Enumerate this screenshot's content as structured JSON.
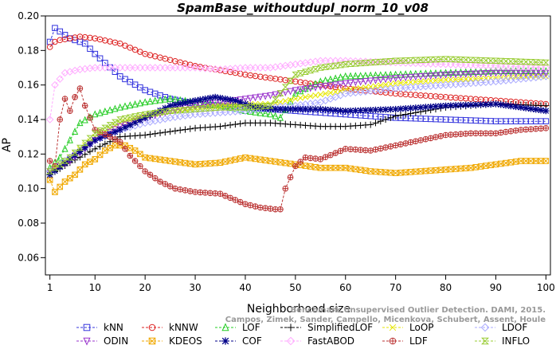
{
  "chart_data": {
    "type": "line",
    "title": "SpamBase_withoutdupl_norm_10_v08",
    "xlabel": "Neighborhood size",
    "ylabel": "AP",
    "xlim": [
      1,
      100
    ],
    "ylim": [
      0.05,
      0.2
    ],
    "xticks": [
      1,
      10,
      20,
      30,
      40,
      50,
      60,
      70,
      80,
      90,
      100
    ],
    "yticks": [
      0.06,
      0.08,
      0.1,
      0.12,
      0.14,
      0.16,
      0.18,
      0.2
    ],
    "ytick_labels": [
      "0.06",
      "0.08",
      "0.10",
      "0.12",
      "0.14",
      "0.16",
      "0.18",
      "0.20"
    ],
    "grid": false,
    "legend_position": "bottom",
    "watermark": [
      "Benchmark Unsupervised Outlier Detection. DAMI, 2015.",
      "Campos, Zimek, Sander, Campello, Micenkova, Schubert, Assent, Houle"
    ],
    "series": [
      {
        "name": "kNN",
        "color": "#3333dd",
        "marker": "square",
        "x": [
          1,
          2,
          3,
          5,
          8,
          10,
          15,
          20,
          25,
          30,
          40,
          50,
          60,
          70,
          80,
          90,
          100
        ],
        "y": [
          0.185,
          0.193,
          0.191,
          0.187,
          0.184,
          0.178,
          0.165,
          0.157,
          0.152,
          0.149,
          0.147,
          0.145,
          0.143,
          0.141,
          0.14,
          0.139,
          0.139
        ]
      },
      {
        "name": "kNNW",
        "color": "#dd2222",
        "marker": "circle",
        "x": [
          1,
          2,
          3,
          5,
          7,
          10,
          15,
          20,
          30,
          40,
          50,
          60,
          70,
          80,
          90,
          100
        ],
        "y": [
          0.182,
          0.185,
          0.186,
          0.187,
          0.188,
          0.187,
          0.184,
          0.178,
          0.171,
          0.166,
          0.162,
          0.158,
          0.155,
          0.153,
          0.151,
          0.149
        ]
      },
      {
        "name": "LOF",
        "color": "#22cc22",
        "marker": "triangle-up",
        "x": [
          1,
          3,
          5,
          7,
          10,
          15,
          20,
          25,
          30,
          35,
          40,
          45,
          47,
          50,
          55,
          60,
          70,
          80,
          90,
          100
        ],
        "y": [
          0.112,
          0.118,
          0.128,
          0.138,
          0.143,
          0.147,
          0.15,
          0.152,
          0.15,
          0.148,
          0.145,
          0.143,
          0.141,
          0.155,
          0.162,
          0.165,
          0.166,
          0.167,
          0.168,
          0.168
        ]
      },
      {
        "name": "SimplifiedLOF",
        "color": "#000000",
        "marker": "plus",
        "x": [
          1,
          5,
          10,
          15,
          20,
          25,
          30,
          35,
          40,
          45,
          50,
          55,
          60,
          65,
          70,
          80,
          90,
          100
        ],
        "y": [
          0.108,
          0.115,
          0.123,
          0.13,
          0.131,
          0.133,
          0.135,
          0.136,
          0.138,
          0.138,
          0.137,
          0.136,
          0.136,
          0.137,
          0.142,
          0.147,
          0.149,
          0.148
        ]
      },
      {
        "name": "LoOP",
        "color": "#e6e600",
        "marker": "cross",
        "x": [
          1,
          5,
          10,
          15,
          20,
          25,
          30,
          35,
          40,
          45,
          50,
          60,
          70,
          80,
          90,
          100
        ],
        "y": [
          0.11,
          0.118,
          0.13,
          0.138,
          0.142,
          0.145,
          0.147,
          0.148,
          0.149,
          0.149,
          0.152,
          0.157,
          0.161,
          0.163,
          0.164,
          0.165
        ]
      },
      {
        "name": "LDOF",
        "color": "#aaaaff",
        "marker": "diamond",
        "x": [
          1,
          5,
          10,
          15,
          20,
          25,
          30,
          35,
          40,
          45,
          50,
          55,
          60,
          70,
          80,
          90,
          100
        ],
        "y": [
          0.11,
          0.118,
          0.128,
          0.134,
          0.138,
          0.141,
          0.143,
          0.144,
          0.145,
          0.147,
          0.148,
          0.15,
          0.155,
          0.158,
          0.16,
          0.162,
          0.165
        ]
      },
      {
        "name": "ODIN",
        "color": "#9933cc",
        "marker": "triangle-down",
        "x": [
          1,
          5,
          10,
          15,
          20,
          25,
          30,
          35,
          40,
          45,
          50,
          60,
          70,
          80,
          90,
          100
        ],
        "y": [
          0.11,
          0.116,
          0.128,
          0.136,
          0.141,
          0.145,
          0.148,
          0.15,
          0.152,
          0.154,
          0.157,
          0.161,
          0.164,
          0.166,
          0.167,
          0.167
        ]
      },
      {
        "name": "KDEOS",
        "color": "#f0a800",
        "marker": "square-x",
        "x": [
          1,
          2,
          4,
          6,
          8,
          10,
          12,
          14,
          16,
          18,
          20,
          25,
          30,
          35,
          40,
          45,
          50,
          55,
          60,
          65,
          70,
          75,
          80,
          85,
          90,
          95,
          100
        ],
        "y": [
          0.105,
          0.098,
          0.104,
          0.108,
          0.114,
          0.117,
          0.122,
          0.125,
          0.125,
          0.122,
          0.118,
          0.116,
          0.114,
          0.115,
          0.118,
          0.116,
          0.114,
          0.112,
          0.112,
          0.11,
          0.109,
          0.11,
          0.111,
          0.112,
          0.114,
          0.116,
          0.116
        ]
      },
      {
        "name": "COF",
        "color": "#000088",
        "marker": "asterisk",
        "x": [
          1,
          5,
          10,
          15,
          20,
          25,
          30,
          34,
          38,
          42,
          46,
          50,
          55,
          60,
          70,
          80,
          90,
          100
        ],
        "y": [
          0.108,
          0.117,
          0.128,
          0.134,
          0.141,
          0.148,
          0.151,
          0.153,
          0.151,
          0.147,
          0.146,
          0.146,
          0.146,
          0.145,
          0.146,
          0.148,
          0.149,
          0.145
        ]
      },
      {
        "name": "FastABOD",
        "color": "#ffaaff",
        "marker": "diamond-open",
        "x": [
          1,
          2,
          4,
          7,
          10,
          15,
          20,
          25,
          30,
          35,
          40,
          45,
          50,
          55,
          60,
          70,
          80,
          90,
          100
        ],
        "y": [
          0.14,
          0.16,
          0.167,
          0.169,
          0.17,
          0.17,
          0.17,
          0.17,
          0.17,
          0.169,
          0.17,
          0.17,
          0.172,
          0.174,
          0.174,
          0.173,
          0.172,
          0.171,
          0.17
        ]
      },
      {
        "name": "LDF",
        "color": "#bb3333",
        "marker": "circle-plus",
        "x": [
          1,
          2,
          3,
          4,
          5,
          6,
          7,
          8,
          10,
          13,
          15,
          17,
          20,
          23,
          26,
          30,
          35,
          40,
          43,
          46,
          47,
          48,
          50,
          52,
          55,
          60,
          65,
          70,
          75,
          80,
          85,
          90,
          95,
          100
        ],
        "y": [
          0.116,
          0.113,
          0.14,
          0.152,
          0.145,
          0.153,
          0.158,
          0.148,
          0.134,
          0.13,
          0.127,
          0.119,
          0.11,
          0.104,
          0.1,
          0.098,
          0.097,
          0.091,
          0.089,
          0.088,
          0.088,
          0.1,
          0.113,
          0.118,
          0.117,
          0.123,
          0.122,
          0.125,
          0.128,
          0.131,
          0.132,
          0.132,
          0.134,
          0.135
        ]
      },
      {
        "name": "INFLO",
        "color": "#99cc33",
        "marker": "hourglass",
        "x": [
          1,
          5,
          10,
          15,
          20,
          25,
          30,
          35,
          40,
          45,
          50,
          55,
          60,
          70,
          80,
          90,
          100
        ],
        "y": [
          0.11,
          0.118,
          0.132,
          0.14,
          0.143,
          0.145,
          0.146,
          0.147,
          0.147,
          0.148,
          0.166,
          0.17,
          0.172,
          0.174,
          0.175,
          0.174,
          0.173
        ]
      }
    ]
  }
}
